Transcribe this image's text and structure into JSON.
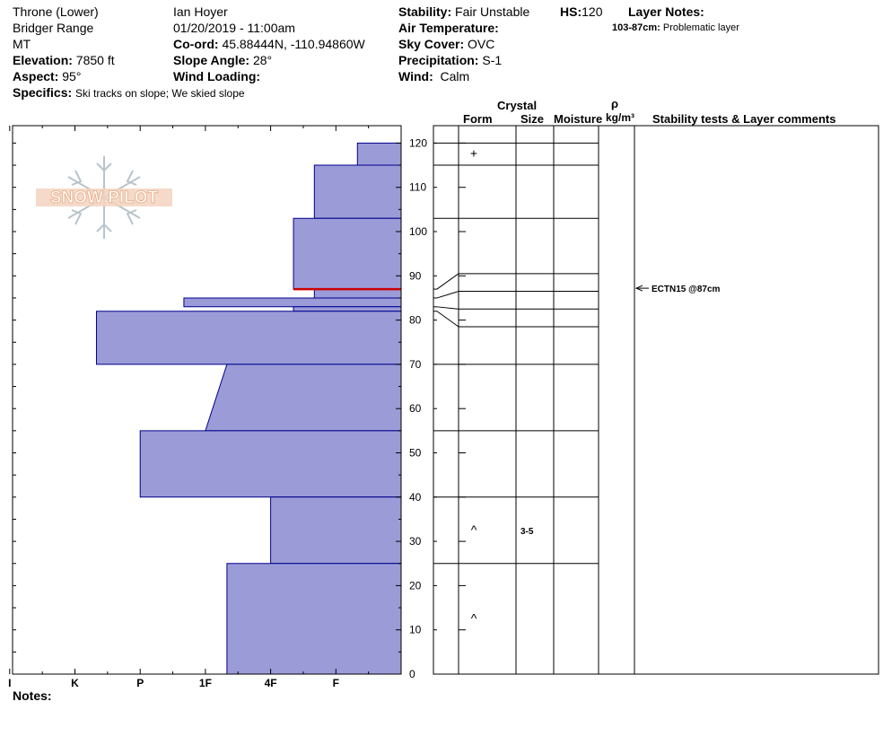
{
  "header": {
    "site": "Throne (Lower)",
    "range": "Bridger Range",
    "state": "MT",
    "elevation_label": "Elevation:",
    "elevation_value": "7850 ft",
    "aspect_label": "Aspect:",
    "aspect_value": "95°",
    "specifics_label": "Specifics:",
    "specifics_value": "Ski tracks on slope; We skied slope",
    "observer": "Ian Hoyer",
    "datetime": "01/20/2019 - 11:00am",
    "coord_label": "Co-ord:",
    "coord_value": "45.88444N, -110.94860W",
    "slope_label": "Slope Angle:",
    "slope_value": "28°",
    "wind_loading_label": "Wind Loading:",
    "wind_loading_value": "",
    "stability_label": "Stability:",
    "stability_value": "Fair Unstable",
    "hs_label": "HS:",
    "hs_value": "120",
    "air_temp_label": "Air Temperature:",
    "air_temp_value": "",
    "sky_label": "Sky Cover:",
    "sky_value": "OVC",
    "precip_label": "Precipitation:",
    "precip_value": "S-1",
    "wind_label": "Wind:",
    "wind_value": "Calm",
    "layer_notes_label": "Layer Notes:",
    "layer_note_range": "103-87cm:",
    "layer_note_text": "Problematic layer"
  },
  "columns": {
    "crystal": "Crystal",
    "form": "Form",
    "size": "Size",
    "moisture": "Moisture",
    "rho": "ρ",
    "density_unit": "kg/m³",
    "stability": "Stability tests & Layer comments"
  },
  "notes_label": "Notes:",
  "watermark_text": "SNOW PILOT",
  "colors": {
    "hardness_fill": "#9b9bd8",
    "hardness_stroke": "#00008b",
    "weak_layer": "#cc0000",
    "watermark": "#e8a880"
  },
  "chart_data": {
    "type": "bar",
    "title": "",
    "xlabel": "",
    "ylabel": "",
    "ylim": [
      0,
      124
    ],
    "yticks": [
      0,
      10,
      20,
      30,
      40,
      50,
      60,
      70,
      80,
      90,
      100,
      110,
      120
    ],
    "hardness_axis": [
      "I",
      "K",
      "P",
      "1F",
      "4F",
      "F"
    ],
    "hardness_scale_note": "hardness index: 0 = wall, 1 = F, 2 = 4F, 3 = 1F, 4 = P, 5 = K, 6 = I",
    "layers": [
      {
        "top": 120,
        "bottom": 115,
        "h_top": 0.67,
        "h_bottom": 0.67,
        "form": "+",
        "size": ""
      },
      {
        "top": 115,
        "bottom": 103,
        "h_top": 1.33,
        "h_bottom": 1.33,
        "form": "",
        "size": ""
      },
      {
        "top": 103,
        "bottom": 87,
        "h_top": 1.65,
        "h_bottom": 1.65,
        "form": "",
        "size": ""
      },
      {
        "top": 87,
        "bottom": 85,
        "h_top": 1.33,
        "h_bottom": 1.33,
        "form": "",
        "size": ""
      },
      {
        "top": 85,
        "bottom": 83,
        "h_top": 3.33,
        "h_bottom": 3.33,
        "form": "",
        "size": ""
      },
      {
        "top": 83,
        "bottom": 82,
        "h_top": 1.65,
        "h_bottom": 1.65,
        "form": "",
        "size": ""
      },
      {
        "top": 82,
        "bottom": 70,
        "h_top": 4.67,
        "h_bottom": 4.67,
        "form": "",
        "size": ""
      },
      {
        "top": 70,
        "bottom": 55,
        "h_top": 2.67,
        "h_bottom": 3.0,
        "form": "",
        "size": ""
      },
      {
        "top": 55,
        "bottom": 40,
        "h_top": 4.0,
        "h_bottom": 4.0,
        "form": "",
        "size": ""
      },
      {
        "top": 40,
        "bottom": 25,
        "h_top": 2.0,
        "h_bottom": 2.0,
        "form": "^",
        "size": "3-5"
      },
      {
        "top": 25,
        "bottom": 0,
        "h_top": 2.67,
        "h_bottom": 2.67,
        "form": "^",
        "size": ""
      }
    ],
    "weak_layer_cm": 87,
    "stability_tests": [
      {
        "height": 87,
        "label": "ECTN15 @87cm"
      }
    ]
  }
}
